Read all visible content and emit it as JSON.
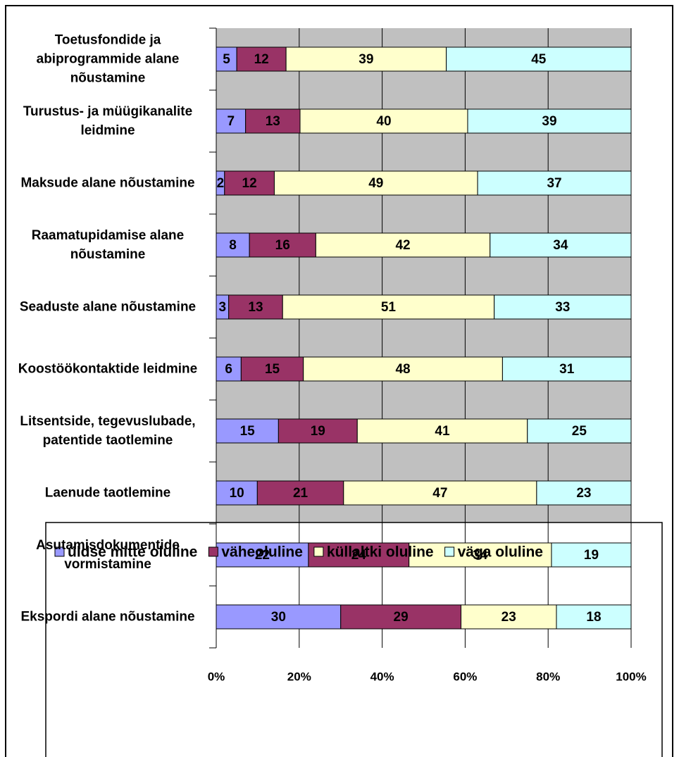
{
  "chart_data": {
    "type": "bar",
    "orientation": "horizontal",
    "stacked": "percent",
    "categories": [
      "Toetusfondide ja abiprogrammide alane nõustamine",
      "Turustus- ja müügikanalite leidmine",
      "Maksude alane nõustamine",
      "Raamatupidamise alane nõustamine",
      "Seaduste alane nõustamine",
      "Koostöökontaktide leidmine",
      "Litsentside, tegevuslubade, patentide taotlemine",
      "Laenude taotlemine",
      "Asutamisdokumentide vormistamine",
      "Ekspordi alane nõustamine"
    ],
    "series": [
      {
        "name": "üldse mitte oluline",
        "color": "#9999ff",
        "values": [
          5,
          7,
          2,
          8,
          3,
          6,
          15,
          10,
          22,
          30
        ]
      },
      {
        "name": "väheoluline",
        "color": "#993366",
        "values": [
          12,
          13,
          12,
          16,
          13,
          15,
          19,
          21,
          24,
          29
        ]
      },
      {
        "name": "küllaltki oluline",
        "color": "#ffffcc",
        "values": [
          39,
          40,
          49,
          42,
          51,
          48,
          41,
          47,
          34,
          23
        ]
      },
      {
        "name": "väga oluline",
        "color": "#ccffff",
        "values": [
          45,
          39,
          37,
          34,
          33,
          31,
          25,
          23,
          19,
          18
        ]
      }
    ],
    "xlim": [
      0,
      100
    ],
    "xticks": [
      {
        "value": 0,
        "label": "0%"
      },
      {
        "value": 20,
        "label": "20%"
      },
      {
        "value": 40,
        "label": "40%"
      },
      {
        "value": 60,
        "label": "60%"
      },
      {
        "value": 80,
        "label": "80%"
      },
      {
        "value": 100,
        "label": "100%"
      }
    ],
    "grid": true,
    "legend": "bottom"
  }
}
